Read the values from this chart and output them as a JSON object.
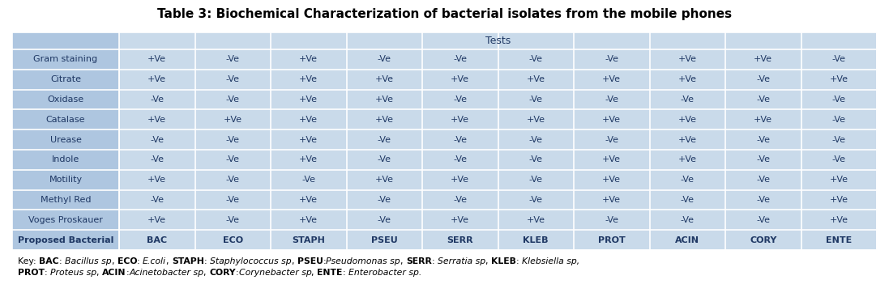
{
  "title": "Table 3: Biochemical Characterization of bacterial isolates from the mobile phones",
  "title_fontsize": 11,
  "title_fontweight": "bold",
  "bg_color": "#ffffff",
  "table_bg_outer": "#aec6e0",
  "table_bg_inner": "#c9daea",
  "text_color": "#1f3864",
  "cell_text_fontsize": 8.0,
  "row_labels": [
    "Gram staining",
    "Citrate",
    "Oxidase",
    "Catalase",
    "Urease",
    "Indole",
    "Motility",
    "Methyl Red",
    "Voges Proskauer",
    "Proposed Bacterial"
  ],
  "table_data": [
    [
      "+Ve",
      "-Ve",
      "+Ve",
      "-Ve",
      "-Ve",
      "-Ve",
      "-Ve",
      "+Ve",
      "+Ve",
      "-Ve"
    ],
    [
      "+Ve",
      "-Ve",
      "+Ve",
      "+Ve",
      "+Ve",
      "+Ve",
      "+Ve",
      "+Ve",
      "-Ve",
      "+Ve"
    ],
    [
      "-Ve",
      "-Ve",
      "+Ve",
      "+Ve",
      "-Ve",
      "-Ve",
      "-Ve",
      "-Ve",
      "-Ve",
      "-Ve"
    ],
    [
      "+Ve",
      "+Ve",
      "+Ve",
      "+Ve",
      "+Ve",
      "+Ve",
      "+Ve",
      "+Ve",
      "+Ve",
      "-Ve"
    ],
    [
      "-Ve",
      "-Ve",
      "+Ve",
      "-Ve",
      "-Ve",
      "-Ve",
      "-Ve",
      "+Ve",
      "-Ve",
      "-Ve"
    ],
    [
      "-Ve",
      "-Ve",
      "+Ve",
      "-Ve",
      "-Ve",
      "-Ve",
      "+Ve",
      "+Ve",
      "-Ve",
      "-Ve"
    ],
    [
      "+Ve",
      "-Ve",
      "-Ve",
      "+Ve",
      "+Ve",
      "-Ve",
      "+Ve",
      "-Ve",
      "-Ve",
      "+Ve"
    ],
    [
      "-Ve",
      "-Ve",
      "+Ve",
      "-Ve",
      "-Ve",
      "-Ve",
      "+Ve",
      "-Ve",
      "-Ve",
      "+Ve"
    ],
    [
      "+Ve",
      "-Ve",
      "+Ve",
      "-Ve",
      "+Ve",
      "+Ve",
      "-Ve",
      "-Ve",
      "-Ve",
      "+Ve"
    ],
    [
      "BAC",
      "ECO",
      "STAPH",
      "PSEU",
      "SERR",
      "KLEB",
      "PROT",
      "ACIN",
      "CORY",
      "ENTE"
    ]
  ],
  "line1_parts": [
    [
      "Key: ",
      false,
      false
    ],
    [
      "BAC",
      true,
      false
    ],
    [
      ": ",
      false,
      false
    ],
    [
      "Bacillus sp",
      false,
      true
    ],
    [
      ", ",
      false,
      false
    ],
    [
      "ECO",
      true,
      false
    ],
    [
      ": ",
      false,
      false
    ],
    [
      "E.coli",
      false,
      true
    ],
    [
      ", ",
      false,
      false
    ],
    [
      "STAPH",
      true,
      false
    ],
    [
      ": ",
      false,
      false
    ],
    [
      "Staphylococcus sp",
      false,
      true
    ],
    [
      ", ",
      false,
      false
    ],
    [
      "PSEU",
      true,
      false
    ],
    [
      ":",
      false,
      false
    ],
    [
      "Pseudomonas sp",
      false,
      true
    ],
    [
      ", ",
      false,
      false
    ],
    [
      "SERR",
      true,
      false
    ],
    [
      ": ",
      false,
      false
    ],
    [
      "Serratia sp",
      false,
      true
    ],
    [
      ", ",
      false,
      false
    ],
    [
      "KLEB",
      true,
      false
    ],
    [
      ": ",
      false,
      false
    ],
    [
      "Klebsiella sp,",
      false,
      true
    ]
  ],
  "line2_parts": [
    [
      "PROT",
      true,
      false
    ],
    [
      ": ",
      false,
      false
    ],
    [
      "Proteus sp",
      false,
      true
    ],
    [
      ", ",
      false,
      false
    ],
    [
      "ACIN",
      true,
      false
    ],
    [
      ":",
      false,
      false
    ],
    [
      "Acinetobacter sp",
      false,
      true
    ],
    [
      ", ",
      false,
      false
    ],
    [
      "CORY",
      true,
      false
    ],
    [
      ":",
      false,
      false
    ],
    [
      "Corynebacter sp",
      false,
      true
    ],
    [
      ", ",
      false,
      false
    ],
    [
      "ENTE",
      true,
      false
    ],
    [
      ": ",
      false,
      false
    ],
    [
      "Enterobacter sp.",
      false,
      true
    ]
  ]
}
